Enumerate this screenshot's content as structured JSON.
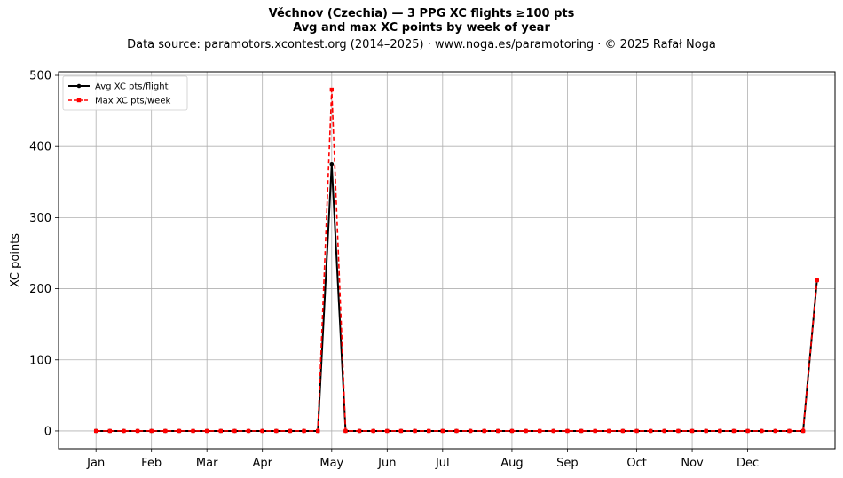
{
  "header": {
    "title": "Věchnov (Czechia)  —  3 PPG XC flights ≥100 pts",
    "subtitle": "Avg and max XC points by week of year",
    "source": "Data source: paramotors.xcontest.org (2014–2025)  ·  www.noga.es/paramotoring  ·  © 2025 Rafał Noga"
  },
  "chart_data": {
    "type": "line",
    "title": "Věchnov (Czechia)  —  3 PPG XC flights ≥100 pts",
    "subtitle": "Avg and max XC points by week of year",
    "xlabel": "",
    "ylabel": "XC points",
    "xlim": [
      -1.7,
      54.3
    ],
    "ylim": [
      -25,
      505
    ],
    "grid": true,
    "legend_position": "top-left",
    "x_ticks": [
      {
        "x": 1,
        "label": "Jan"
      },
      {
        "x": 5,
        "label": "Feb"
      },
      {
        "x": 9,
        "label": "Mar"
      },
      {
        "x": 13,
        "label": "Apr"
      },
      {
        "x": 18,
        "label": "May"
      },
      {
        "x": 22,
        "label": "Jun"
      },
      {
        "x": 26,
        "label": "Jul"
      },
      {
        "x": 31,
        "label": "Aug"
      },
      {
        "x": 35,
        "label": "Sep"
      },
      {
        "x": 40,
        "label": "Oct"
      },
      {
        "x": 44,
        "label": "Nov"
      },
      {
        "x": 48,
        "label": "Dec"
      }
    ],
    "y_ticks": [
      0,
      100,
      200,
      300,
      400,
      500
    ],
    "x": [
      1,
      2,
      3,
      4,
      5,
      6,
      7,
      8,
      9,
      10,
      11,
      12,
      13,
      14,
      15,
      16,
      17,
      18,
      19,
      20,
      21,
      22,
      23,
      24,
      25,
      26,
      27,
      28,
      29,
      30,
      31,
      32,
      33,
      34,
      35,
      36,
      37,
      38,
      39,
      40,
      41,
      42,
      43,
      44,
      45,
      46,
      47,
      48,
      49,
      50,
      51,
      52,
      53
    ],
    "series": [
      {
        "name": "Avg XC pts/flight",
        "color": "#000000",
        "style": "solid",
        "marker": "circle",
        "values": [
          0,
          0,
          0,
          0,
          0,
          0,
          0,
          0,
          0,
          0,
          0,
          0,
          0,
          0,
          0,
          0,
          0,
          375,
          0,
          0,
          0,
          0,
          0,
          0,
          0,
          0,
          0,
          0,
          0,
          0,
          0,
          0,
          0,
          0,
          0,
          0,
          0,
          0,
          0,
          0,
          0,
          0,
          0,
          0,
          0,
          0,
          0,
          0,
          0,
          0,
          0,
          0,
          212
        ]
      },
      {
        "name": "Max XC pts/week",
        "color": "#ff0000",
        "style": "dashed",
        "marker": "square",
        "values": [
          0,
          0,
          0,
          0,
          0,
          0,
          0,
          0,
          0,
          0,
          0,
          0,
          0,
          0,
          0,
          0,
          0,
          480,
          0,
          0,
          0,
          0,
          0,
          0,
          0,
          0,
          0,
          0,
          0,
          0,
          0,
          0,
          0,
          0,
          0,
          0,
          0,
          0,
          0,
          0,
          0,
          0,
          0,
          0,
          0,
          0,
          0,
          0,
          0,
          0,
          0,
          0,
          212
        ]
      }
    ]
  }
}
